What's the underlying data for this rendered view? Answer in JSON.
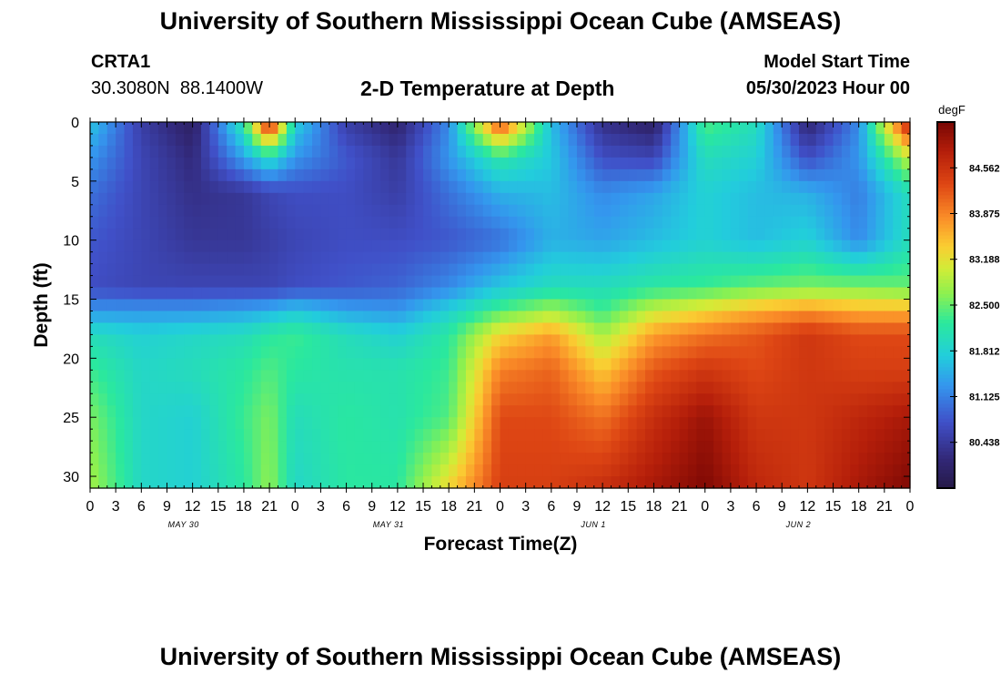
{
  "header": {
    "title": "University of Southern Mississippi Ocean Cube (AMSEAS)",
    "station": "CRTA1",
    "coords": "30.3080N  88.1400W",
    "subtitle": "2-D Temperature at Depth",
    "model_start_label": "Model Start Time",
    "model_start_value": "05/30/2023 Hour 00"
  },
  "footer": {
    "title": "University of Southern Mississippi Ocean Cube (AMSEAS)"
  },
  "chart_data": {
    "type": "heatmap",
    "title": "2-D Temperature at Depth",
    "xlabel": "Forecast Time(Z)",
    "ylabel": "Depth (ft)",
    "colorbar_units": "degF",
    "x_hours_range": [
      0,
      96
    ],
    "x_tick_labels": [
      "0",
      "3",
      "6",
      "9",
      "12",
      "15",
      "18",
      "21",
      "0",
      "3",
      "6",
      "9",
      "12",
      "15",
      "18",
      "21",
      "0",
      "3",
      "6",
      "9",
      "12",
      "15",
      "18",
      "21",
      "0",
      "3",
      "6",
      "9",
      "12",
      "15",
      "18",
      "21",
      "0"
    ],
    "day_labels": [
      "MAY 30",
      "MAY 31",
      "JUN 1",
      "JUN 2"
    ],
    "ylim": [
      0,
      31
    ],
    "y_ticks": [
      0,
      5,
      10,
      15,
      20,
      25,
      30
    ],
    "color_range": [
      79.75,
      85.25
    ],
    "colorbar_ticks": [
      "84.562",
      "83.875",
      "83.188",
      "82.500",
      "81.812",
      "81.125",
      "80.438"
    ],
    "colorbar_tick_values": [
      84.562,
      83.875,
      83.188,
      82.5,
      81.812,
      81.125,
      80.438
    ],
    "depths": [
      0,
      3,
      6,
      10,
      14,
      16,
      18,
      21,
      25,
      31
    ],
    "times": [
      0,
      6,
      12,
      18,
      21,
      24,
      30,
      36,
      42,
      48,
      54,
      60,
      66,
      72,
      78,
      84,
      90,
      96
    ],
    "temperature": [
      [
        81.7,
        80.5,
        80.0,
        82.2,
        84.9,
        81.8,
        80.5,
        80.1,
        81.2,
        84.4,
        81.6,
        80.3,
        80.0,
        82.4,
        82.0,
        80.1,
        81.2,
        84.9
      ],
      [
        81.3,
        80.6,
        80.2,
        81.4,
        82.0,
        81.3,
        80.8,
        80.4,
        81.3,
        82.2,
        81.7,
        80.7,
        80.6,
        82.0,
        81.8,
        80.7,
        81.3,
        83.0
      ],
      [
        81.0,
        80.6,
        80.3,
        80.4,
        80.6,
        80.7,
        80.7,
        80.5,
        81.0,
        81.5,
        81.6,
        81.2,
        81.4,
        81.8,
        81.6,
        81.5,
        81.1,
        82.0
      ],
      [
        80.8,
        80.6,
        80.4,
        80.4,
        80.5,
        80.6,
        80.7,
        80.7,
        80.8,
        81.0,
        81.5,
        81.4,
        81.6,
        81.8,
        81.6,
        81.8,
        81.2,
        82.0
      ],
      [
        80.7,
        80.6,
        80.6,
        80.6,
        80.6,
        80.7,
        80.8,
        80.9,
        81.2,
        81.7,
        82.0,
        82.0,
        82.2,
        82.3,
        82.5,
        82.6,
        82.6,
        82.5
      ],
      [
        81.3,
        81.3,
        81.3,
        81.4,
        81.5,
        81.7,
        81.4,
        81.3,
        81.8,
        82.4,
        82.8,
        82.3,
        83.0,
        83.3,
        83.6,
        83.8,
        83.6,
        83.6
      ],
      [
        82.0,
        81.8,
        81.9,
        82.0,
        82.2,
        82.3,
        82.0,
        81.8,
        82.2,
        83.3,
        83.7,
        82.8,
        83.7,
        84.0,
        84.2,
        84.5,
        84.3,
        84.3
      ],
      [
        82.3,
        81.9,
        82.0,
        82.2,
        82.4,
        82.2,
        82.1,
        82.1,
        82.3,
        83.9,
        84.1,
        83.4,
        84.2,
        84.5,
        84.3,
        84.5,
        84.4,
        84.4
      ],
      [
        82.6,
        81.9,
        81.8,
        82.3,
        82.6,
        82.0,
        82.2,
        82.1,
        82.4,
        84.3,
        84.3,
        84.0,
        84.6,
        85.0,
        84.5,
        84.5,
        84.7,
        84.9
      ],
      [
        82.8,
        81.9,
        81.8,
        82.2,
        82.7,
        81.9,
        82.2,
        82.2,
        83.3,
        84.4,
        84.4,
        84.6,
        84.9,
        85.2,
        84.7,
        84.5,
        84.9,
        85.2
      ]
    ]
  }
}
